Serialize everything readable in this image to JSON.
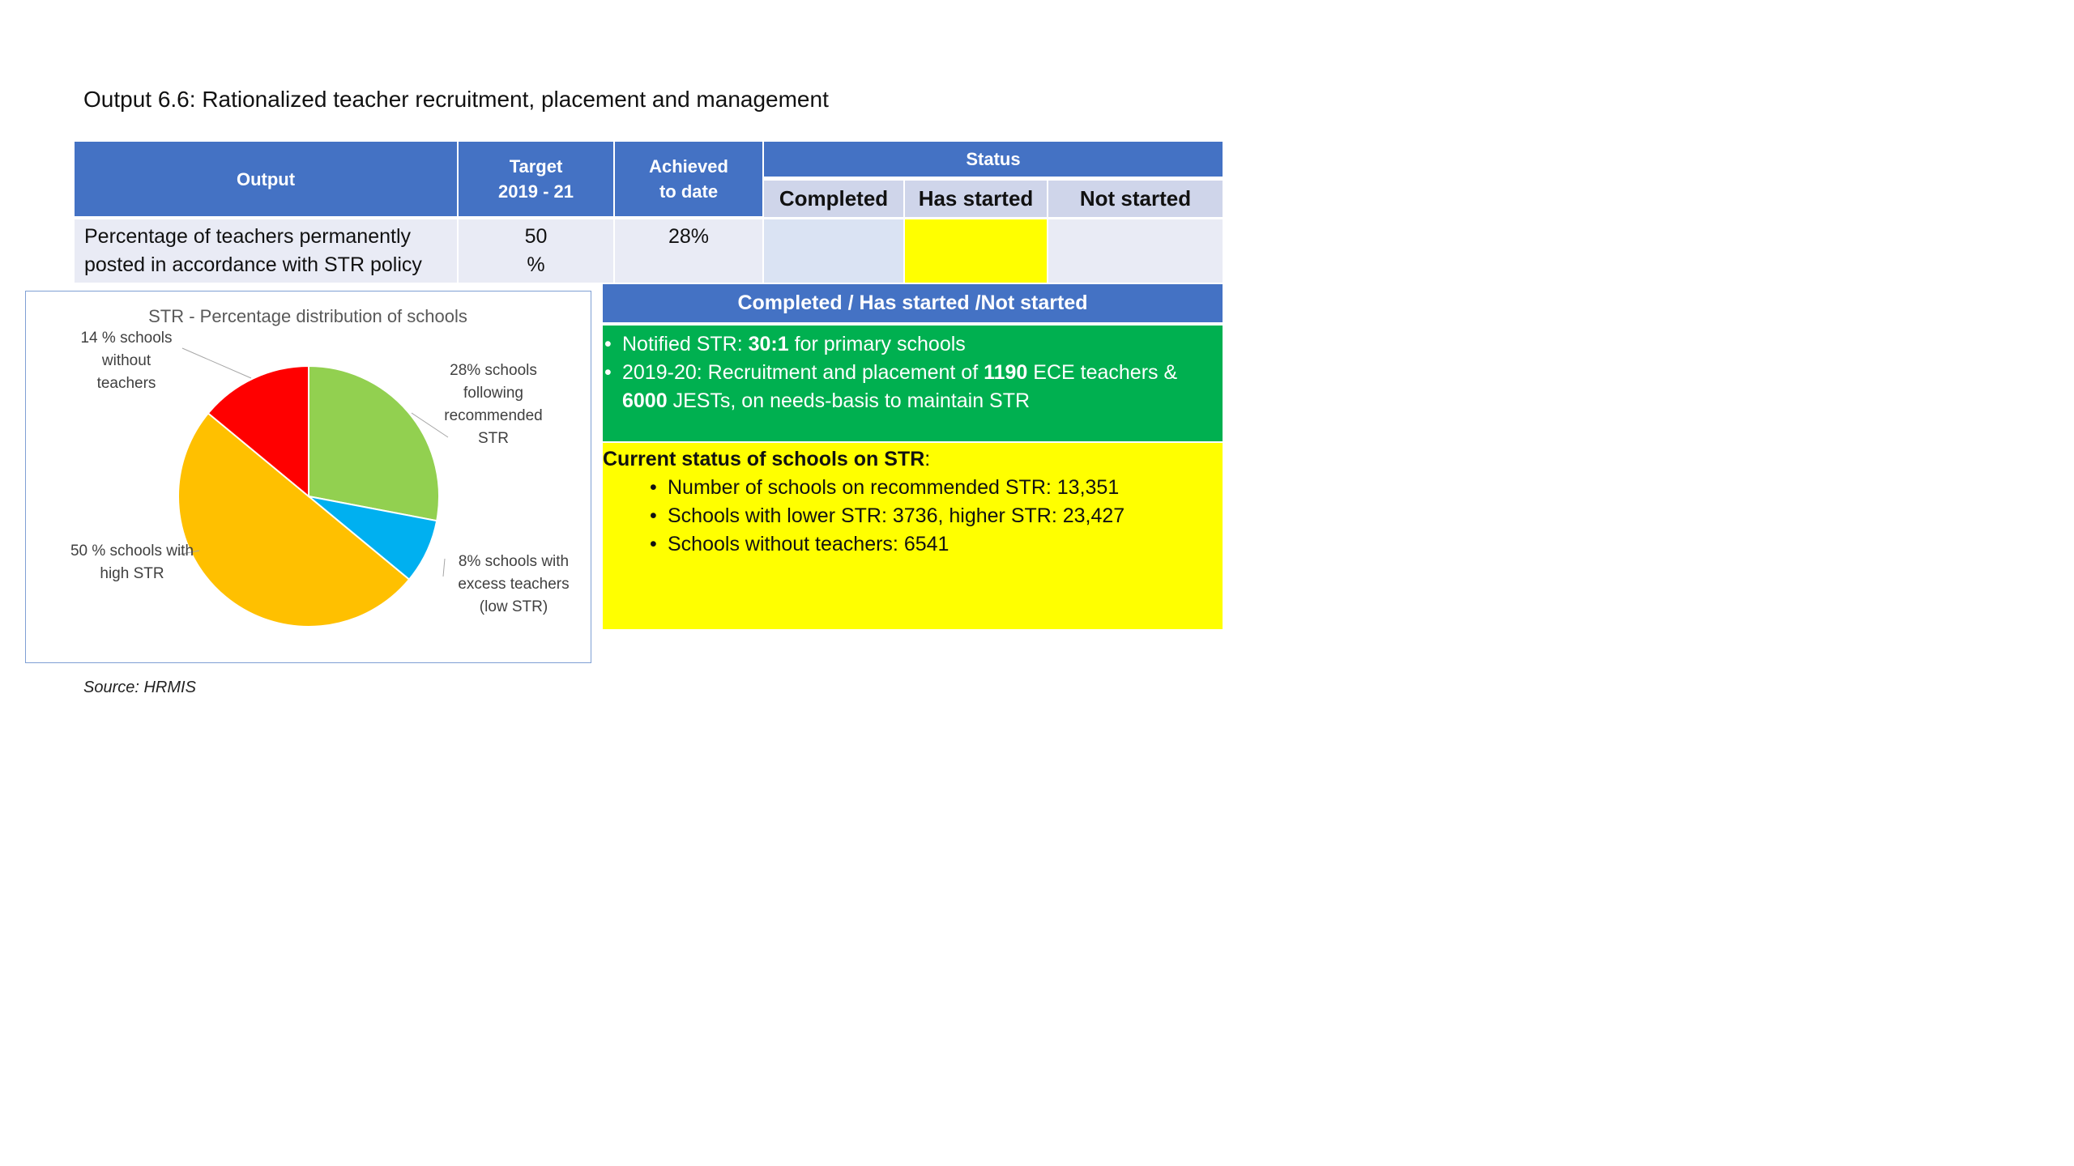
{
  "title": "Output 6.6: Rationalized teacher recruitment, placement and management",
  "table": {
    "headers": {
      "output": "Output",
      "target_line1": "Target",
      "target_line2": "2019 - 21",
      "achieved_line1": "Achieved",
      "achieved_line2": "to date",
      "status": "Status",
      "completed": "Completed",
      "has_started": "Has started",
      "not_started": "Not started"
    },
    "row": {
      "output_line1": "Percentage of teachers permanently",
      "output_line2": "posted in accordance with STR policy",
      "target_line1": "50",
      "target_line2": "%",
      "achieved": "28%"
    },
    "status_colors": {
      "completed": "#dae3f3",
      "has_started": "#ffff00",
      "not_started": "#e9ebf5"
    }
  },
  "panel": {
    "heading": "Completed / Has started /Not  started",
    "green_bullets": [
      {
        "pre": "Notified STR: ",
        "bold": "30:1",
        "post": " for primary schools"
      },
      {
        "pre": "2019-20: Recruitment and placement of ",
        "bold": "1190",
        "post": " ECE teachers &"
      },
      {
        "pre": "",
        "bold": "6000",
        "post": " JESTs, on needs-basis to maintain STR"
      }
    ],
    "yellow_heading_bold": "Current status of schools on STR",
    "yellow_heading_colon": ":",
    "yellow_bullets": [
      "Number of schools on recommended STR: 13,351",
      "Schools with lower STR: 3736, higher STR: 23,427",
      "Schools without teachers: 6541"
    ],
    "colors": {
      "header": "#4472c4",
      "green": "#00b050",
      "yellow": "#ffff00"
    }
  },
  "chart_data": {
    "type": "pie",
    "title": "STR - Percentage distribution of schools",
    "slices": [
      {
        "label_lines": [
          "28% schools",
          "following",
          "recommended",
          "STR"
        ],
        "value": 28,
        "color": "#92d050"
      },
      {
        "label_lines": [
          "8% schools with",
          "excess teachers",
          "(low STR)"
        ],
        "value": 8,
        "color": "#00b0f0"
      },
      {
        "label_lines": [
          "50 % schools with",
          "high STR"
        ],
        "value": 50,
        "color": "#ffc000"
      },
      {
        "label_lines": [
          "14 % schools",
          "without",
          "teachers"
        ],
        "value": 14,
        "color": "#ff0000"
      }
    ],
    "start": "12 o'clock",
    "direction": "clockwise"
  },
  "source": "Source: HRMIS"
}
